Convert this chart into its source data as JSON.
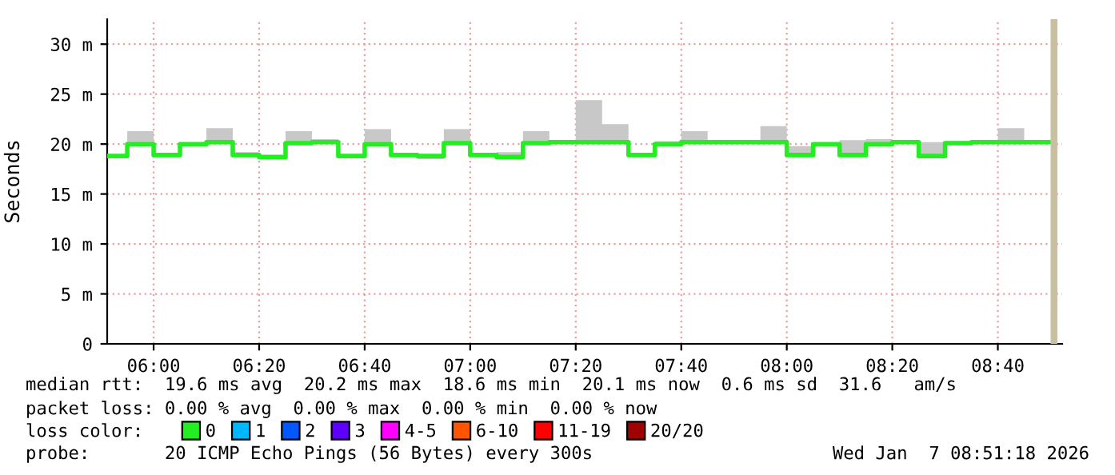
{
  "chart_data": {
    "type": "step",
    "ylabel": "Seconds",
    "x": [
      5.8533,
      5.9167,
      6.0,
      6.0833,
      6.1667,
      6.25,
      6.3333,
      6.4167,
      6.5,
      6.5833,
      6.6667,
      6.75,
      6.8333,
      6.9167,
      7.0,
      7.0833,
      7.1667,
      7.25,
      7.3333,
      7.4167,
      7.5,
      7.5833,
      7.6667,
      7.75,
      7.8333,
      7.9167,
      8.0,
      8.0833,
      8.1667,
      8.25,
      8.3333,
      8.4167,
      8.5,
      8.5833,
      8.6667,
      8.75,
      8.8333
    ],
    "series": [
      {
        "name": "0",
        "color": "#22ee22",
        "values": [
          18.8,
          20.0,
          18.9,
          20.0,
          20.2,
          18.9,
          18.7,
          20.1,
          20.2,
          18.8,
          20.0,
          18.9,
          18.8,
          20.1,
          18.9,
          18.7,
          20.1,
          20.2,
          20.2,
          20.2,
          18.9,
          20.0,
          20.2,
          20.2,
          20.2,
          20.2,
          18.9,
          20.0,
          18.9,
          20.0,
          20.2,
          18.8,
          20.1,
          20.2,
          20.2,
          20.2,
          20.2
        ],
        "lower": [
          18.8,
          20.0,
          18.9,
          20.0,
          20.2,
          18.9,
          18.7,
          20.1,
          20.2,
          18.8,
          20.0,
          18.9,
          18.5,
          20.1,
          18.9,
          18.7,
          20.1,
          20.2,
          20.2,
          20.2,
          18.9,
          20.0,
          20.2,
          20.2,
          20.2,
          20.2,
          18.9,
          20.0,
          18.9,
          20.0,
          20.2,
          18.8,
          20.1,
          20.2,
          20.2,
          20.2,
          20.2
        ],
        "upper": [
          18.8,
          21.3,
          18.9,
          20.1,
          21.6,
          19.2,
          18.9,
          21.3,
          20.5,
          18.8,
          21.5,
          18.9,
          18.8,
          21.5,
          18.9,
          19.2,
          21.3,
          20.2,
          24.4,
          22.0,
          18.9,
          20.3,
          21.3,
          20.4,
          20.2,
          21.8,
          19.8,
          20.0,
          20.4,
          20.5,
          20.2,
          20.2,
          20.3,
          20.2,
          21.6,
          20.2,
          20.2
        ]
      },
      {
        "name": "1",
        "color": "#00b8ff",
        "values": [
          null,
          null,
          null,
          null,
          null,
          null,
          null,
          null,
          null,
          null,
          null,
          null,
          null,
          null,
          null,
          null,
          null,
          null,
          null,
          null,
          null,
          null,
          null,
          null,
          null,
          null,
          null,
          null,
          null,
          null,
          null,
          null,
          null,
          null,
          null,
          null,
          null
        ]
      },
      {
        "name": "2",
        "color": "#0059ff",
        "values": [
          null,
          null,
          null,
          null,
          null,
          null,
          null,
          null,
          null,
          null,
          null,
          null,
          null,
          null,
          null,
          null,
          null,
          null,
          null,
          null,
          null,
          null,
          null,
          null,
          null,
          null,
          null,
          null,
          null,
          null,
          null,
          null,
          null,
          null,
          null,
          null,
          null
        ]
      },
      {
        "name": "3",
        "color": "#5e00ff",
        "values": [
          null,
          null,
          null,
          null,
          null,
          null,
          null,
          null,
          null,
          null,
          null,
          null,
          null,
          null,
          null,
          null,
          null,
          null,
          null,
          null,
          null,
          null,
          null,
          null,
          null,
          null,
          null,
          null,
          null,
          null,
          null,
          null,
          null,
          null,
          null,
          null,
          null
        ]
      },
      {
        "name": "4-5",
        "color": "#ff00ff",
        "values": [
          null,
          null,
          null,
          null,
          null,
          null,
          null,
          null,
          null,
          null,
          null,
          null,
          null,
          null,
          null,
          null,
          null,
          null,
          null,
          null,
          null,
          null,
          null,
          null,
          null,
          null,
          null,
          null,
          null,
          null,
          null,
          null,
          null,
          null,
          null,
          null,
          null
        ]
      },
      {
        "name": "6-10",
        "color": "#ff5500",
        "values": [
          null,
          null,
          null,
          null,
          null,
          null,
          null,
          null,
          null,
          null,
          null,
          null,
          null,
          null,
          null,
          null,
          null,
          null,
          null,
          null,
          null,
          null,
          null,
          null,
          null,
          null,
          null,
          null,
          null,
          null,
          null,
          null,
          null,
          null,
          null,
          null,
          null
        ]
      },
      {
        "name": "11-19",
        "color": "#ff0000",
        "values": [
          null,
          null,
          null,
          null,
          null,
          null,
          null,
          null,
          null,
          null,
          null,
          null,
          null,
          null,
          null,
          null,
          null,
          null,
          null,
          null,
          null,
          null,
          null,
          null,
          null,
          null,
          null,
          null,
          null,
          null,
          null,
          null,
          null,
          null,
          null,
          null,
          null
        ]
      },
      {
        "name": "20/20",
        "color": "#a10000",
        "values": [
          null,
          null,
          null,
          null,
          null,
          null,
          null,
          null,
          null,
          null,
          null,
          null,
          null,
          null,
          null,
          null,
          null,
          null,
          null,
          null,
          null,
          null,
          null,
          null,
          null,
          null,
          null,
          null,
          null,
          null,
          null,
          null,
          null,
          null,
          null,
          null,
          null
        ]
      }
    ],
    "legend_title": "loss color:",
    "legend": "bottom",
    "xlim": [
      5.8533,
      8.87
    ],
    "ylim": [
      0,
      32.5
    ],
    "xticks": [
      {
        "value": 6.0,
        "label": "06:00"
      },
      {
        "value": 6.3333,
        "label": "06:20"
      },
      {
        "value": 6.6667,
        "label": "06:40"
      },
      {
        "value": 7.0,
        "label": "07:00"
      },
      {
        "value": 7.3333,
        "label": "07:20"
      },
      {
        "value": 7.6667,
        "label": "07:40"
      },
      {
        "value": 8.0,
        "label": "08:00"
      },
      {
        "value": 8.3333,
        "label": "08:20"
      },
      {
        "value": 8.6667,
        "label": "08:40"
      }
    ],
    "yticks": [
      0,
      {
        "value": 5,
        "label": "5 m"
      },
      {
        "value": 10,
        "label": "10 m"
      },
      {
        "value": 15,
        "label": "15 m"
      },
      {
        "value": 20,
        "label": "20 m"
      },
      {
        "value": 25,
        "label": "25 m"
      },
      {
        "value": 30,
        "label": "30 m"
      }
    ],
    "grid": true,
    "bands": [
      {
        "axis": "x",
        "from": 8.8333,
        "to": 8.855,
        "color": "#c8c0a0"
      }
    ],
    "annotations": [
      "median rtt:  19.6 ms avg  20.2 ms max  18.6 ms min  20.1 ms now  0.6 ms sd  31.6   am/s",
      "packet loss: 0.00 % avg  0.00 % max  0.00 % min  0.00 % now",
      "probe:       20 ICMP Echo Pings (56 Bytes) every 300s",
      "Wed Jan  7 08:51:18 2026"
    ]
  }
}
